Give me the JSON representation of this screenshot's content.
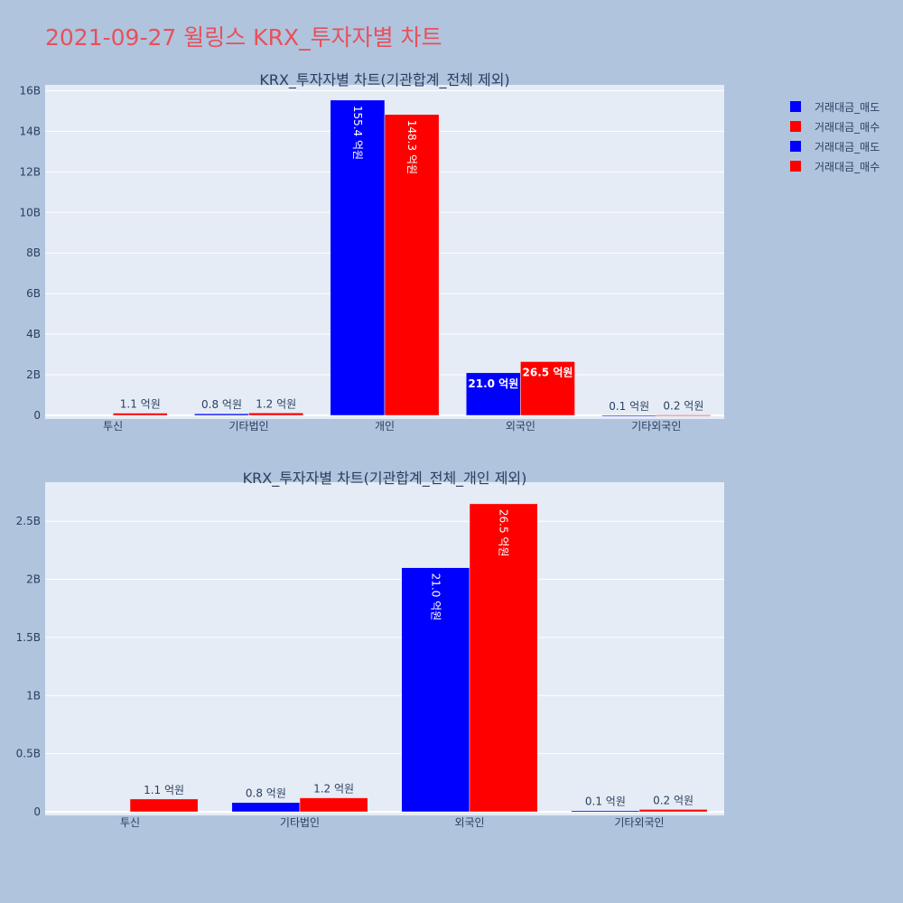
{
  "page": {
    "title": "2021-09-27 윌링스 KRX_투자자별 차트"
  },
  "colors": {
    "sell": "#0000ff",
    "buy": "#ff0000",
    "plot_bg": "#e5ecf6",
    "grid": "#ffffff",
    "text": "#2a3f5f"
  },
  "legend": [
    {
      "label": "거래대금_매도",
      "color": "#0000ff"
    },
    {
      "label": "거래대금_매수",
      "color": "#ff0000"
    },
    {
      "label": "거래대금_매도",
      "color": "#0000ff"
    },
    {
      "label": "거래대금_매수",
      "color": "#ff0000"
    }
  ],
  "chart_data": [
    {
      "type": "bar",
      "title": "KRX_투자자별 차트(기관합계_전체 제외)",
      "categories": [
        "투신",
        "기타법인",
        "개인",
        "외국인",
        "기타외국인"
      ],
      "series": [
        {
          "name": "거래대금_매도",
          "values": [
            0,
            80000000,
            15540000000,
            2100000000,
            10000000
          ],
          "labels": [
            "",
            "0.8 억원",
            "155.4 억원",
            "21.0 억원",
            "0.1 억원"
          ]
        },
        {
          "name": "거래대금_매수",
          "values": [
            110000000,
            120000000,
            14830000000,
            2650000000,
            20000000
          ],
          "labels": [
            "1.1 억원",
            "1.2 억원",
            "148.3 억원",
            "26.5 억원",
            "0.2 억원"
          ]
        }
      ],
      "ylim": [
        0,
        16200000000
      ],
      "yticks": [
        0,
        2000000000,
        4000000000,
        6000000000,
        8000000000,
        10000000000,
        12000000000,
        14000000000,
        16000000000
      ],
      "ytick_labels": [
        "0",
        "2B",
        "4B",
        "6B",
        "8B",
        "10B",
        "12B",
        "14B",
        "16B"
      ],
      "grid": true
    },
    {
      "type": "bar",
      "title": "KRX_투자자별 차트(기관합계_전체_개인 제외)",
      "categories": [
        "투신",
        "기타법인",
        "외국인",
        "기타외국인"
      ],
      "series": [
        {
          "name": "거래대금_매도",
          "values": [
            0,
            80000000,
            2100000000,
            10000000
          ],
          "labels": [
            "",
            "0.8 억원",
            "21.0 억원",
            "0.1 억원"
          ]
        },
        {
          "name": "거래대금_매수",
          "values": [
            110000000,
            120000000,
            2650000000,
            20000000
          ],
          "labels": [
            "1.1 억원",
            "1.2 억원",
            "26.5 억원",
            "0.2 억원"
          ]
        }
      ],
      "ylim": [
        0,
        2820000000
      ],
      "yticks": [
        0,
        500000000,
        1000000000,
        1500000000,
        2000000000,
        2500000000
      ],
      "ytick_labels": [
        "0",
        "0.5B",
        "1B",
        "1.5B",
        "2B",
        "2.5B"
      ],
      "grid": true
    }
  ]
}
